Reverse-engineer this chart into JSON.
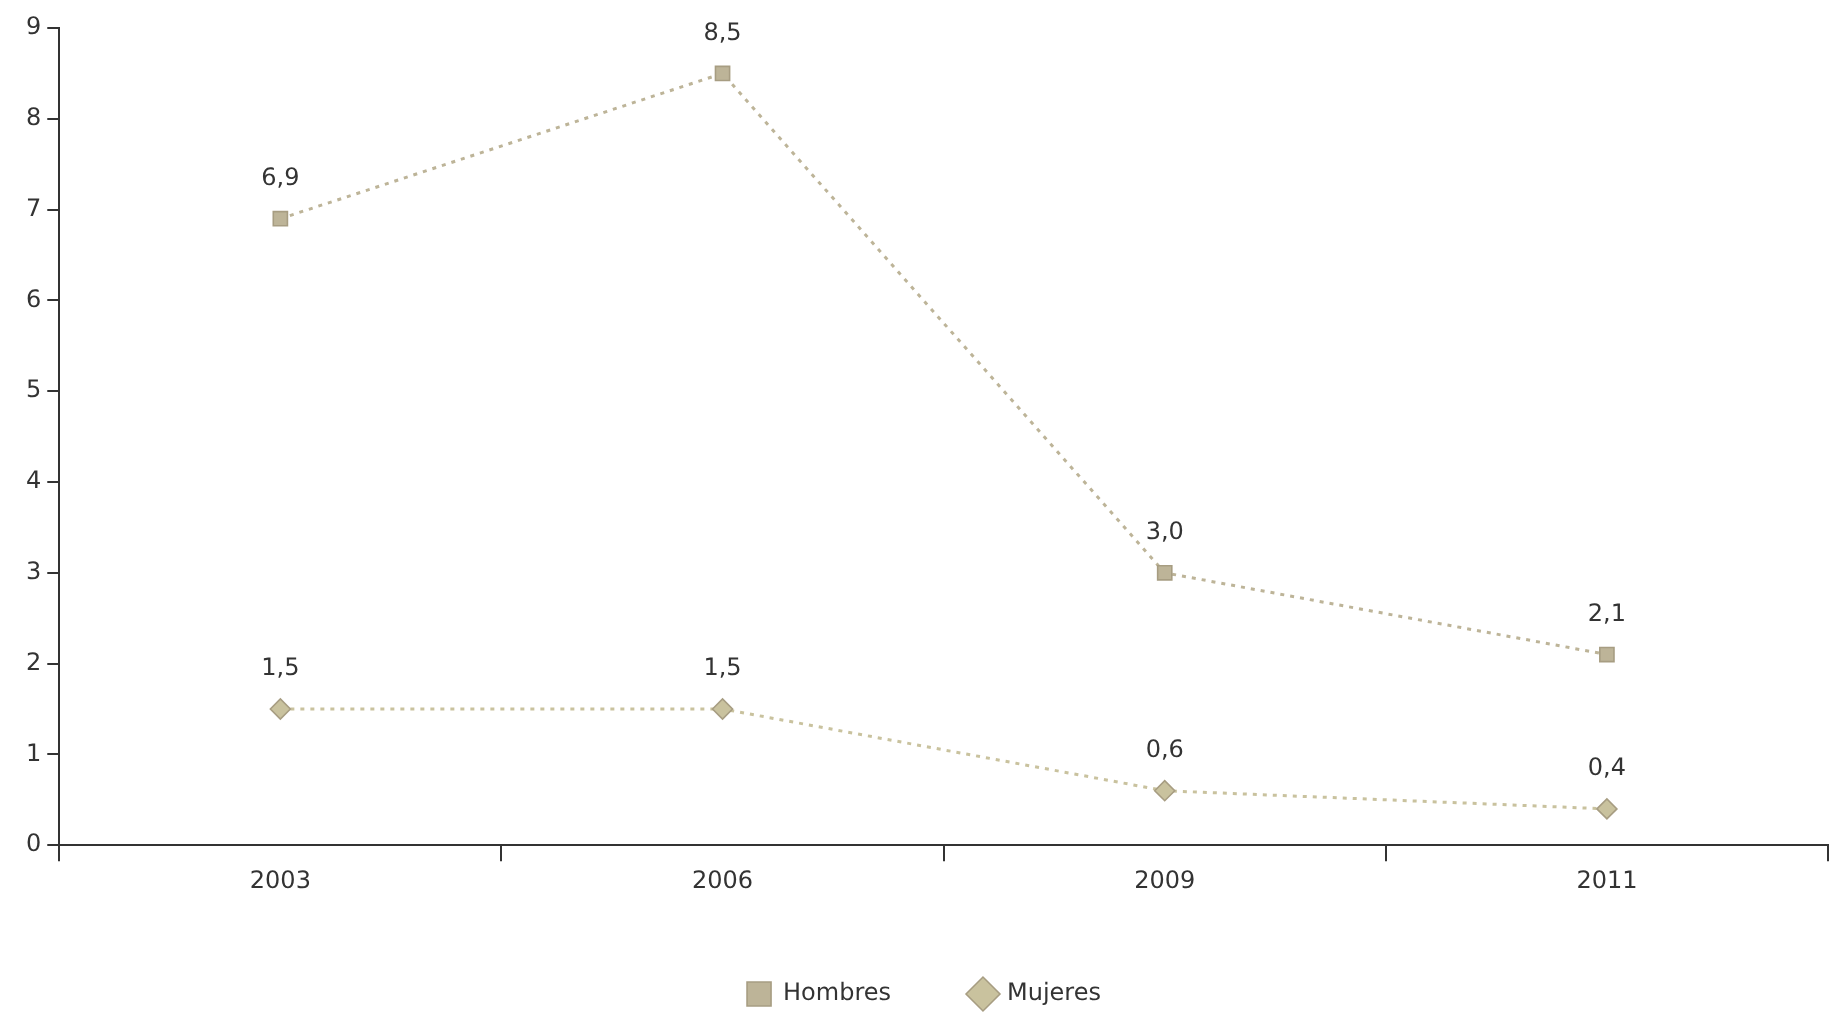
{
  "chart_data": {
    "type": "line",
    "categories": [
      "2003",
      "2006",
      "2009",
      "2011"
    ],
    "series": [
      {
        "name": "Hombres",
        "color": "#bdb498",
        "marker": "square",
        "values": [
          6.9,
          8.5,
          3.0,
          2.1
        ],
        "value_labels": [
          "6,9",
          "8,5",
          "3,0",
          "2,1"
        ]
      },
      {
        "name": "Mujeres",
        "color": "#c9c29e",
        "marker": "diamond",
        "values": [
          1.5,
          1.5,
          0.6,
          0.4
        ],
        "value_labels": [
          "1,5",
          "1,5",
          "0,6",
          "0,4"
        ]
      }
    ],
    "ylim": [
      0,
      9
    ],
    "yticks": [
      0,
      1,
      2,
      3,
      4,
      5,
      6,
      7,
      8,
      9
    ],
    "grid": false,
    "legend": "bottom",
    "line_style": "dotted"
  }
}
